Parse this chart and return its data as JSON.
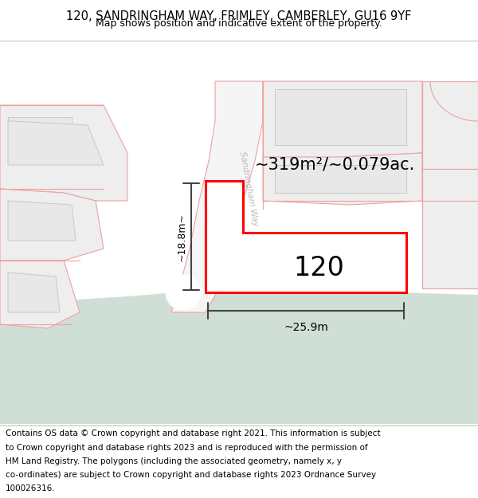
{
  "title_line1": "120, SANDRINGHAM WAY, FRIMLEY, CAMBERLEY, GU16 9YF",
  "title_line2": "Map shows position and indicative extent of the property.",
  "footer_lines": [
    "Contains OS data © Crown copyright and database right 2021. This information is subject",
    "to Crown copyright and database rights 2023 and is reproduced with the permission of",
    "HM Land Registry. The polygons (including the associated geometry, namely x, y",
    "co-ordinates) are subject to Crown copyright and database rights 2023 Ordnance Survey",
    "100026316."
  ],
  "map_bg_color": "#ffffff",
  "green_area_color": "#cfdfd5",
  "road_line_color": "#f0a0a0",
  "property_line_color": "#ff0000",
  "property_fill_color": "#ffffff",
  "property_label": "120",
  "area_label": "~319m²/~0.079ac.",
  "width_label": "~25.9m",
  "height_label": "~18.8m~",
  "road_label": "Sandringham Way",
  "title_fontsize": 10.5,
  "subtitle_fontsize": 9,
  "footer_fontsize": 7.5
}
